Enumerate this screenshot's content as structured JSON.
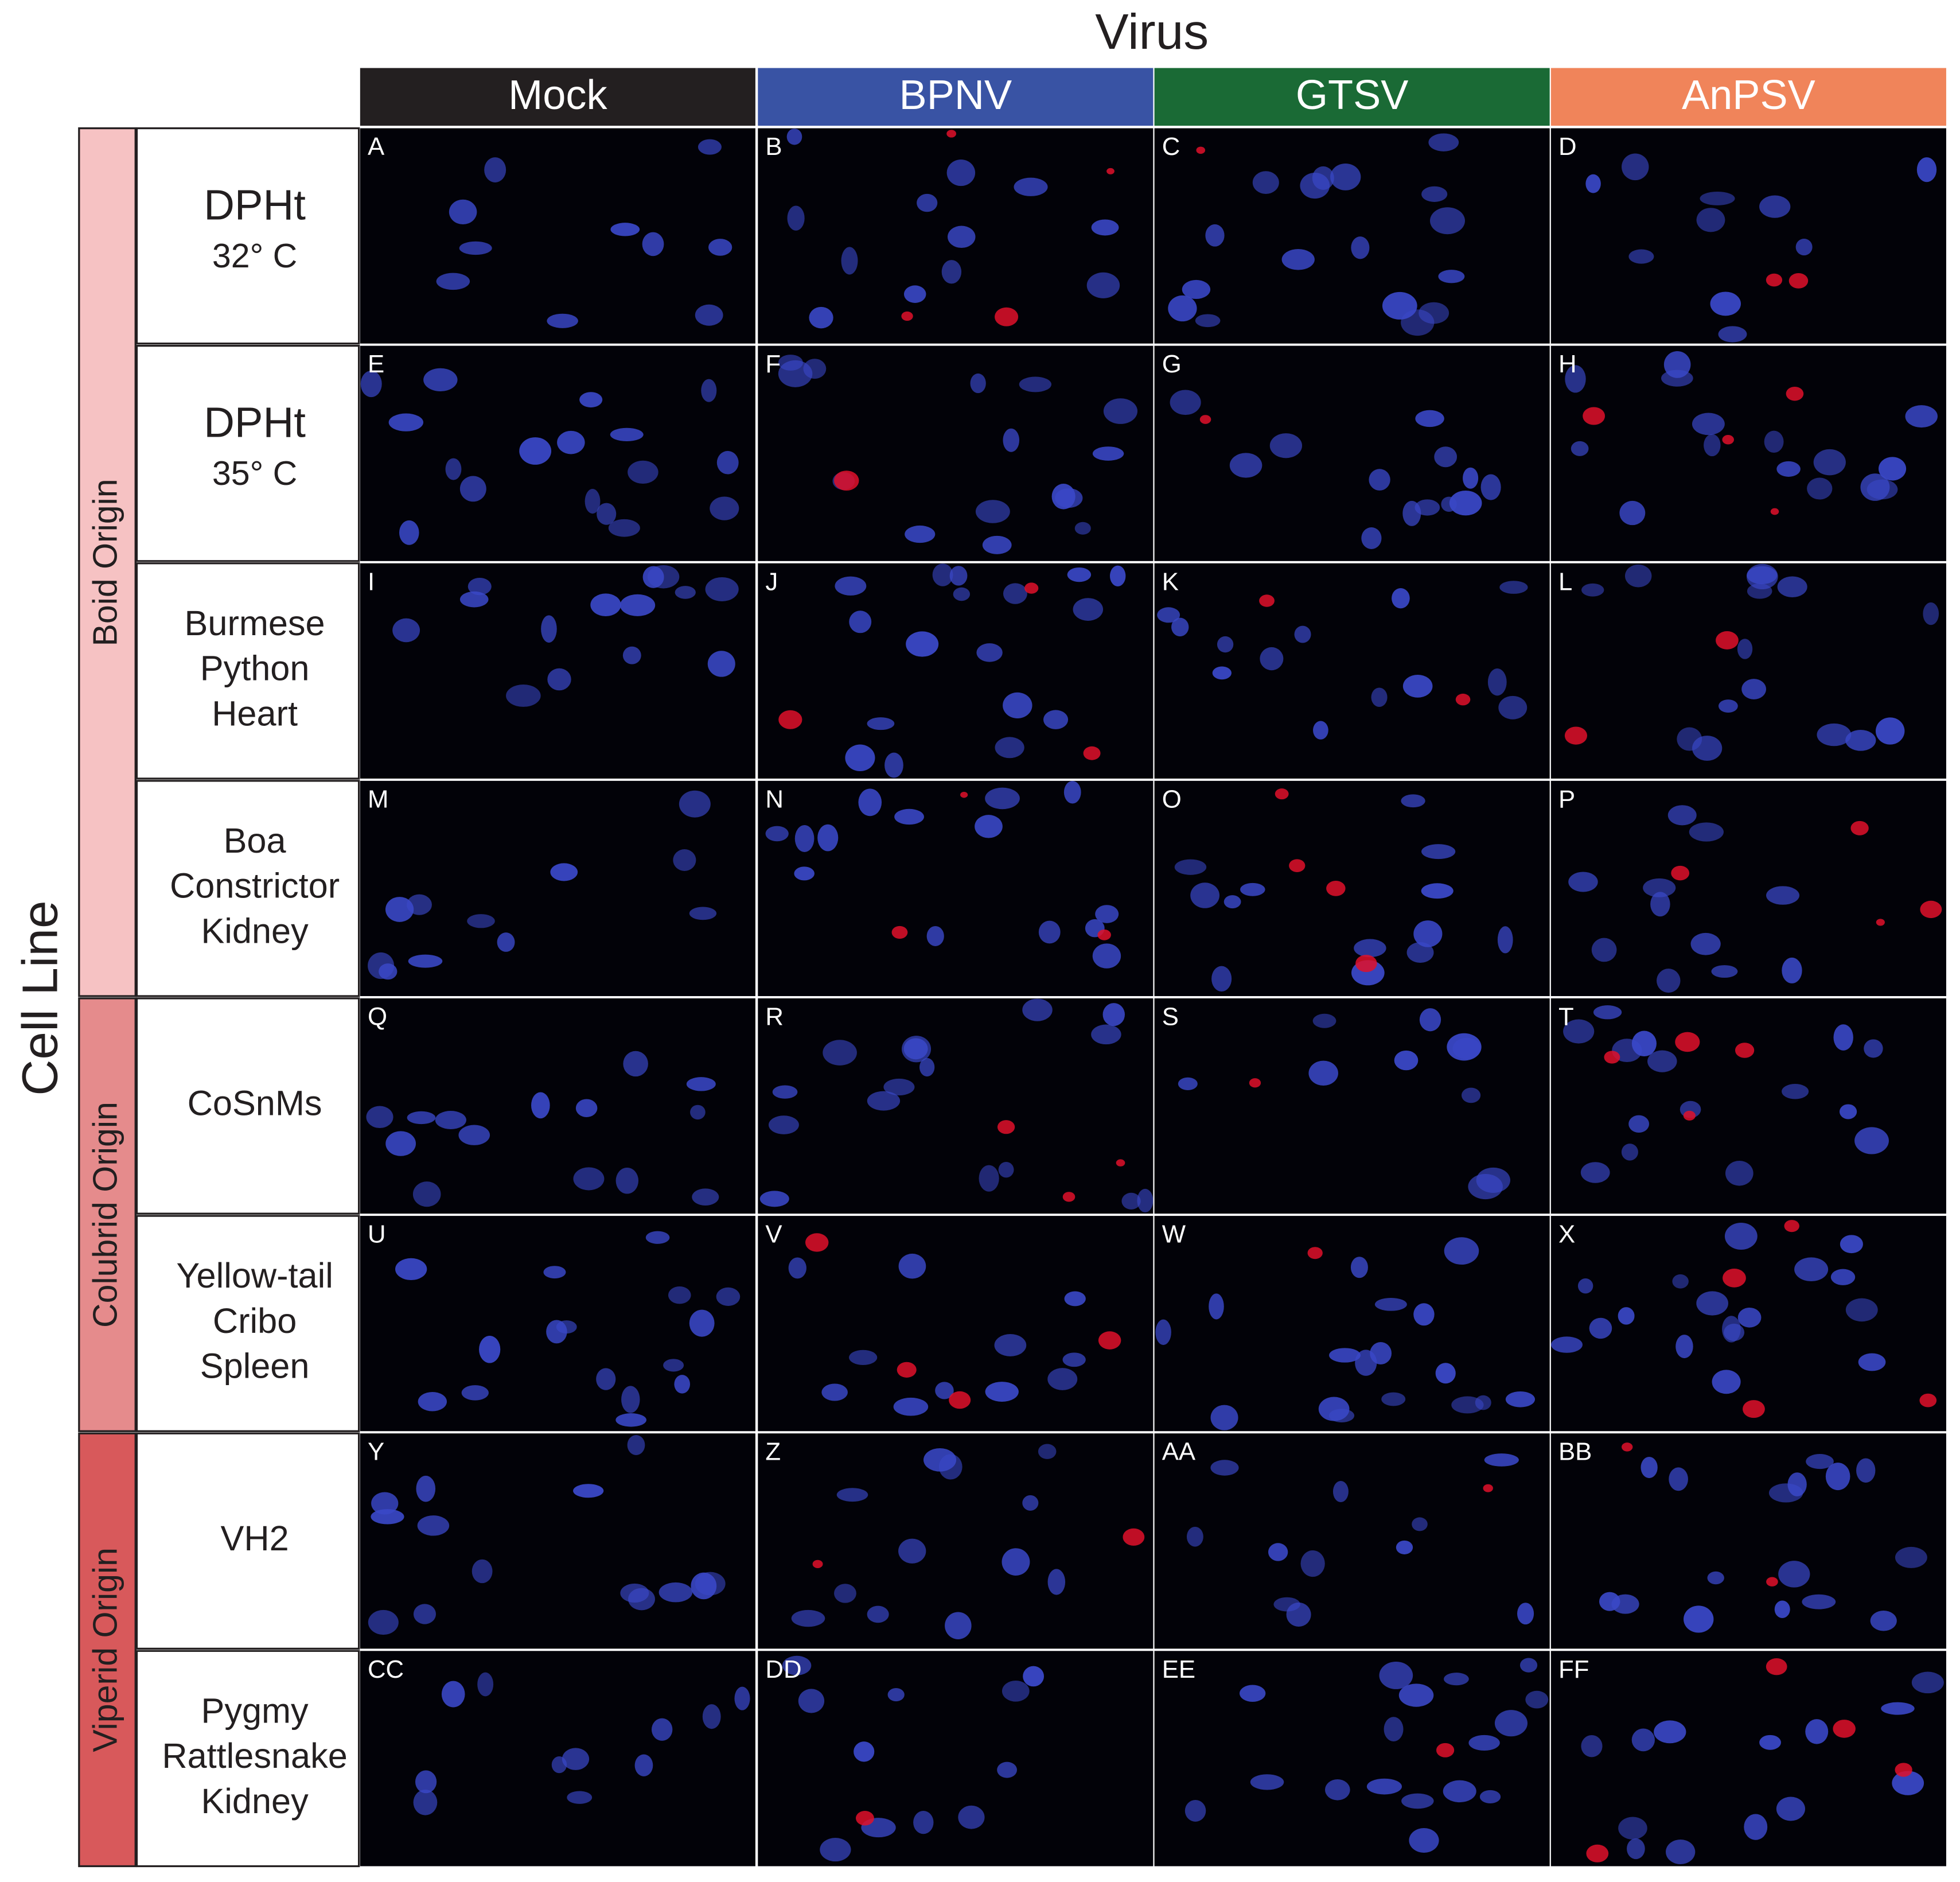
{
  "header": {
    "title": "Virus",
    "columns": [
      "Mock",
      "BPNV",
      "GTSV",
      "AnPSV"
    ]
  },
  "row_axis": {
    "title": "Cell Line"
  },
  "origins": [
    "Boid Origin",
    "Colubrid Origin",
    "Viperid Origin"
  ],
  "rows": [
    {
      "lines": [
        "DPHt",
        "32° C"
      ],
      "panels": [
        "A",
        "B",
        "C",
        "D"
      ]
    },
    {
      "lines": [
        "DPHt",
        "35° C"
      ],
      "panels": [
        "E",
        "F",
        "G",
        "H"
      ]
    },
    {
      "lines": [
        "Burmese",
        "Python",
        "Heart"
      ],
      "panels": [
        "I",
        "J",
        "K",
        "L"
      ]
    },
    {
      "lines": [
        "Boa",
        "Constrictor",
        "Kidney"
      ],
      "panels": [
        "M",
        "N",
        "O",
        "P"
      ]
    },
    {
      "lines": [
        "CoSnMs"
      ],
      "panels": [
        "Q",
        "R",
        "S",
        "T"
      ]
    },
    {
      "lines": [
        "Yellow-tail",
        "Cribo",
        "Spleen"
      ],
      "panels": [
        "U",
        "V",
        "W",
        "X"
      ]
    },
    {
      "lines": [
        "VH2"
      ],
      "panels": [
        "Y",
        "Z",
        "AA",
        "BB"
      ]
    },
    {
      "lines": [
        "Pygmy",
        "Rattlesnake",
        "Kidney"
      ],
      "panels": [
        "CC",
        "DD",
        "EE",
        "FF"
      ]
    }
  ]
}
